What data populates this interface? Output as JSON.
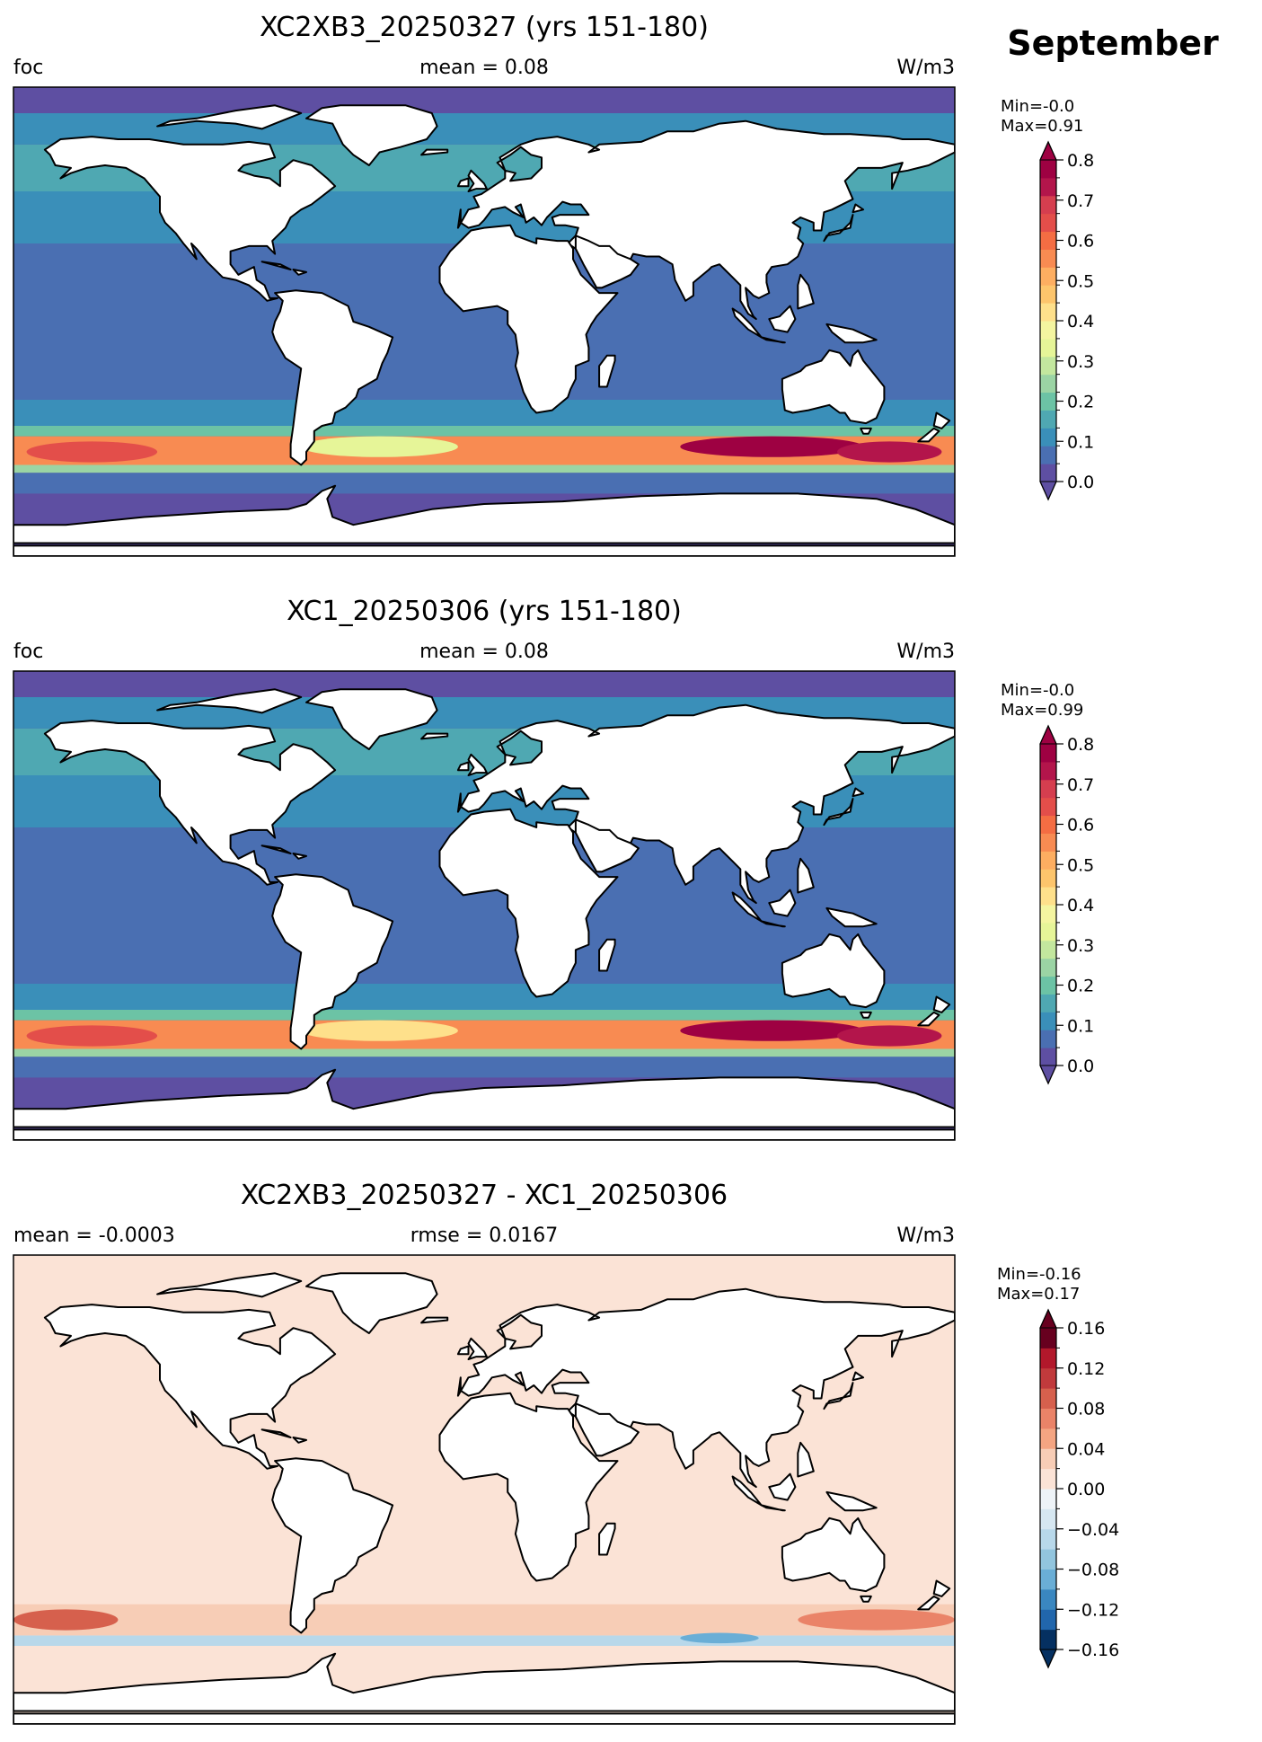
{
  "figure": {
    "month_label": "September"
  },
  "chart_data": [
    {
      "type": "heatmap",
      "title": "XC2XB3_20250327 (yrs 151-180)",
      "left_label": "foc",
      "center_label": "mean = 0.08",
      "right_label": "W/m3",
      "min_label": "Min=-0.0",
      "max_label": "Max=0.91",
      "colorbar": {
        "colormap": "Spectral_r",
        "extend": "both",
        "range": [
          0.0,
          0.8
        ],
        "ticks": [
          0.0,
          0.1,
          0.2,
          0.3,
          0.4,
          0.5,
          0.6,
          0.7,
          0.8
        ],
        "tick_labels": [
          "0.0",
          "0.1",
          "0.2",
          "0.3",
          "0.4",
          "0.5",
          "0.6",
          "0.7",
          "0.8"
        ],
        "colors": [
          "#5e4fa2",
          "#4a6fb2",
          "#3a8fb9",
          "#4fa8b2",
          "#6cc3a5",
          "#9bd4a4",
          "#c3e79e",
          "#e6f598",
          "#f4f5a0",
          "#fee08b",
          "#fdc56c",
          "#fdae61",
          "#f88b52",
          "#f46d43",
          "#e34e4a",
          "#d53e4f",
          "#b3154b",
          "#9e0142"
        ],
        "under_color": "#5e4fa2",
        "over_color": "#9e0142"
      },
      "bands": [
        {
          "lat": [
            -90,
            -66
          ],
          "value": -0.02
        },
        {
          "lat": [
            -66,
            -58
          ],
          "value": 0.05
        },
        {
          "lat": [
            -58,
            -55
          ],
          "value": 0.25
        },
        {
          "lat": [
            -55,
            -44
          ],
          "value": 0.55
        },
        {
          "lat": [
            -44,
            -40
          ],
          "value": 0.2
        },
        {
          "lat": [
            -40,
            -30
          ],
          "value": 0.1
        },
        {
          "lat": [
            -30,
            30
          ],
          "value": 0.05
        },
        {
          "lat": [
            30,
            50
          ],
          "value": 0.1
        },
        {
          "lat": [
            50,
            68
          ],
          "value": 0.14
        },
        {
          "lat": [
            68,
            80
          ],
          "value": 0.1
        },
        {
          "lat": [
            80,
            90
          ],
          "value": -0.02
        }
      ],
      "blobs": [
        {
          "lon": 110,
          "lat": -48,
          "rlon": 35,
          "rlat": 4,
          "value": 0.85
        },
        {
          "lon": 155,
          "lat": -50,
          "rlon": 20,
          "rlat": 4,
          "value": 0.75
        },
        {
          "lon": -40,
          "lat": -48,
          "rlon": 30,
          "rlat": 4,
          "value": 0.35
        },
        {
          "lon": -150,
          "lat": -50,
          "rlon": 25,
          "rlat": 4,
          "value": 0.65
        }
      ]
    },
    {
      "type": "heatmap",
      "title": "XC1_20250306 (yrs 151-180)",
      "left_label": "foc",
      "center_label": "mean = 0.08",
      "right_label": "W/m3",
      "min_label": "Min=-0.0",
      "max_label": "Max=0.99",
      "colorbar": {
        "colormap": "Spectral_r",
        "extend": "both",
        "range": [
          0.0,
          0.8
        ],
        "ticks": [
          0.0,
          0.1,
          0.2,
          0.3,
          0.4,
          0.5,
          0.6,
          0.7,
          0.8
        ],
        "tick_labels": [
          "0.0",
          "0.1",
          "0.2",
          "0.3",
          "0.4",
          "0.5",
          "0.6",
          "0.7",
          "0.8"
        ],
        "colors": [
          "#5e4fa2",
          "#4a6fb2",
          "#3a8fb9",
          "#4fa8b2",
          "#6cc3a5",
          "#9bd4a4",
          "#c3e79e",
          "#e6f598",
          "#f4f5a0",
          "#fee08b",
          "#fdc56c",
          "#fdae61",
          "#f88b52",
          "#f46d43",
          "#e34e4a",
          "#d53e4f",
          "#b3154b",
          "#9e0142"
        ],
        "under_color": "#5e4fa2",
        "over_color": "#9e0142"
      },
      "bands": [
        {
          "lat": [
            -90,
            -66
          ],
          "value": -0.02
        },
        {
          "lat": [
            -66,
            -58
          ],
          "value": 0.05
        },
        {
          "lat": [
            -58,
            -55
          ],
          "value": 0.25
        },
        {
          "lat": [
            -55,
            -44
          ],
          "value": 0.55
        },
        {
          "lat": [
            -44,
            -40
          ],
          "value": 0.2
        },
        {
          "lat": [
            -40,
            -30
          ],
          "value": 0.1
        },
        {
          "lat": [
            -30,
            30
          ],
          "value": 0.05
        },
        {
          "lat": [
            30,
            50
          ],
          "value": 0.1
        },
        {
          "lat": [
            50,
            68
          ],
          "value": 0.14
        },
        {
          "lat": [
            68,
            80
          ],
          "value": 0.1
        },
        {
          "lat": [
            80,
            90
          ],
          "value": -0.02
        }
      ],
      "blobs": [
        {
          "lon": 110,
          "lat": -48,
          "rlon": 35,
          "rlat": 4,
          "value": 0.9
        },
        {
          "lon": 155,
          "lat": -50,
          "rlon": 20,
          "rlat": 4,
          "value": 0.75
        },
        {
          "lon": -40,
          "lat": -48,
          "rlon": 30,
          "rlat": 4,
          "value": 0.4
        },
        {
          "lon": -150,
          "lat": -50,
          "rlon": 25,
          "rlat": 4,
          "value": 0.65
        }
      ]
    },
    {
      "type": "heatmap",
      "title": "XC2XB3_20250327 - XC1_20250306",
      "left_label": "mean = -0.0003",
      "center_label": "rmse = 0.0167",
      "right_label": "W/m3",
      "min_label": "Min=-0.16",
      "max_label": "Max=0.17",
      "colorbar": {
        "colormap": "RdBu_r",
        "extend": "both",
        "range": [
          -0.16,
          0.16
        ],
        "ticks": [
          -0.16,
          -0.12,
          -0.08,
          -0.04,
          0.0,
          0.04,
          0.08,
          0.12,
          0.16
        ],
        "tick_labels": [
          "−0.16",
          "−0.12",
          "−0.08",
          "−0.04",
          "0.00",
          "0.04",
          "0.08",
          "0.12",
          "0.16"
        ],
        "colors": [
          "#053061",
          "#2166ac",
          "#3a87c0",
          "#6aaed6",
          "#92c5de",
          "#b8d8ea",
          "#d6e7f1",
          "#eef3f7",
          "#fbe3d6",
          "#f7cdb6",
          "#f4a582",
          "#ea8368",
          "#d6604d",
          "#c13a3c",
          "#b2182b",
          "#67001f"
        ],
        "under_color": "#053061",
        "over_color": "#67001f"
      },
      "bands": [
        {
          "lat": [
            -90,
            -60
          ],
          "value": 0.01
        },
        {
          "lat": [
            -60,
            -56
          ],
          "value": -0.05
        },
        {
          "lat": [
            -56,
            -44
          ],
          "value": 0.02
        },
        {
          "lat": [
            -44,
            90
          ],
          "value": 0.005
        }
      ],
      "blobs": [
        {
          "lon": -160,
          "lat": -50,
          "rlon": 20,
          "rlat": 4,
          "value": 0.09
        },
        {
          "lon": 150,
          "lat": -50,
          "rlon": 30,
          "rlat": 4,
          "value": 0.07
        },
        {
          "lon": 90,
          "lat": -57,
          "rlon": 15,
          "rlat": 2,
          "value": -0.1
        }
      ]
    }
  ]
}
